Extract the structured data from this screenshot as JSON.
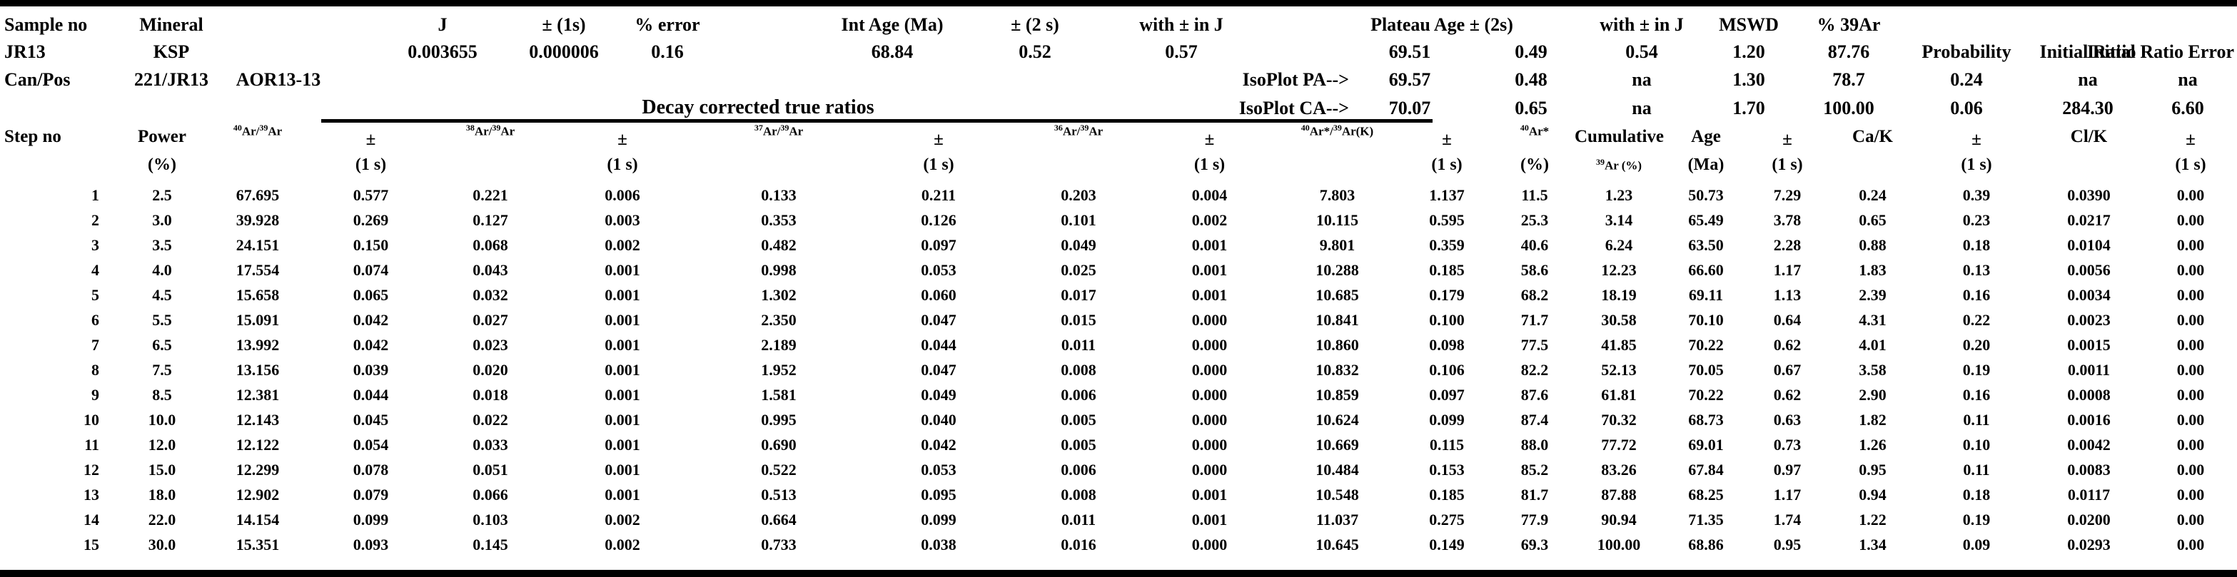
{
  "info": {
    "header_row": {
      "sample_no": "Sample no",
      "mineral": "Mineral",
      "j": "J",
      "pm_1s": "± (1s)",
      "pct_error": "% error",
      "int_age": "Int Age (Ma)",
      "pm_2s": "± (2 s)",
      "with_pm_in_j": "with ± in J",
      "plateau_age_pm_2s": "Plateau Age ± (2s)",
      "with_pm_in_j_2": "with ± in J",
      "mswd": "MSWD",
      "pct_39ar": "% 39Ar"
    },
    "sample_row": {
      "sample_no": "JR13",
      "mineral": "KSP",
      "j": "0.003655",
      "j_err": "0.000006",
      "pct_error": "0.16",
      "int_age": "68.84",
      "int_age_err": "0.52",
      "with_pm_in_j": "0.57",
      "plateau_age": "69.51",
      "plateau_age_err": "0.49",
      "with_pm_in_j_2": "0.54",
      "mswd": "1.20",
      "pct_39ar": "87.76",
      "probability_label": "Probability",
      "initial_ratio_label": "Initial Ratio",
      "initial_ratio_error_label": "Initial Ratio Error"
    },
    "canpos_row": {
      "label": "Can/Pos",
      "can_pos": "221/JR13",
      "irradiation": "AOR13-13",
      "isoplot_pa_label": "IsoPlot PA--&gt;",
      "age": "69.57",
      "err": "0.48",
      "with_pm_in_j": "na",
      "mswd": "1.30",
      "pct_39ar": "78.7",
      "probability": "0.24",
      "initial_ratio": "na",
      "initial_ratio_error": "na"
    },
    "decay_row": {
      "title": "Decay corrected true ratios",
      "isoplot_ca_label": "IsoPlot CA--&gt;",
      "age": "70.07",
      "err": "0.65",
      "with_pm_in_j": "na",
      "mswd": "1.70",
      "pct_39ar": "100.00",
      "probability": "0.06",
      "initial_ratio": "284.30",
      "initial_ratio_error": "6.60"
    }
  },
  "table": {
    "headers_row1": [
      "Step no",
      "Power",
      "40Ar/39Ar",
      "±",
      "38Ar/39Ar",
      "±",
      "37Ar/39Ar",
      "±",
      "36Ar/39Ar",
      "±",
      "40Ar*/39Ar(K)",
      "±",
      "40Ar*",
      "Cumulative",
      "Age",
      "±",
      "Ca/K",
      "±",
      "Cl/K",
      "±"
    ],
    "headers_row2": [
      "",
      "(%)",
      "",
      "(1 s)",
      "",
      "(1 s)",
      "",
      "(1 s)",
      "",
      "(1 s)",
      "",
      "(1 s)",
      "(%)",
      "39Ar (%)",
      "(Ma)",
      "(1 s)",
      "",
      "(1 s)",
      "",
      "(1 s)"
    ],
    "rows": [
      [
        "1",
        "2.5",
        "67.695",
        "0.577",
        "0.221",
        "0.006",
        "0.133",
        "0.211",
        "0.203",
        "0.004",
        "7.803",
        "1.137",
        "11.5",
        "1.23",
        "50.73",
        "7.29",
        "0.24",
        "0.39",
        "0.0390",
        "0.00"
      ],
      [
        "2",
        "3.0",
        "39.928",
        "0.269",
        "0.127",
        "0.003",
        "0.353",
        "0.126",
        "0.101",
        "0.002",
        "10.115",
        "0.595",
        "25.3",
        "3.14",
        "65.49",
        "3.78",
        "0.65",
        "0.23",
        "0.0217",
        "0.00"
      ],
      [
        "3",
        "3.5",
        "24.151",
        "0.150",
        "0.068",
        "0.002",
        "0.482",
        "0.097",
        "0.049",
        "0.001",
        "9.801",
        "0.359",
        "40.6",
        "6.24",
        "63.50",
        "2.28",
        "0.88",
        "0.18",
        "0.0104",
        "0.00"
      ],
      [
        "4",
        "4.0",
        "17.554",
        "0.074",
        "0.043",
        "0.001",
        "0.998",
        "0.053",
        "0.025",
        "0.001",
        "10.288",
        "0.185",
        "58.6",
        "12.23",
        "66.60",
        "1.17",
        "1.83",
        "0.13",
        "0.0056",
        "0.00"
      ],
      [
        "5",
        "4.5",
        "15.658",
        "0.065",
        "0.032",
        "0.001",
        "1.302",
        "0.060",
        "0.017",
        "0.001",
        "10.685",
        "0.179",
        "68.2",
        "18.19",
        "69.11",
        "1.13",
        "2.39",
        "0.16",
        "0.0034",
        "0.00"
      ],
      [
        "6",
        "5.5",
        "15.091",
        "0.042",
        "0.027",
        "0.001",
        "2.350",
        "0.047",
        "0.015",
        "0.000",
        "10.841",
        "0.100",
        "71.7",
        "30.58",
        "70.10",
        "0.64",
        "4.31",
        "0.22",
        "0.0023",
        "0.00"
      ],
      [
        "7",
        "6.5",
        "13.992",
        "0.042",
        "0.023",
        "0.001",
        "2.189",
        "0.044",
        "0.011",
        "0.000",
        "10.860",
        "0.098",
        "77.5",
        "41.85",
        "70.22",
        "0.62",
        "4.01",
        "0.20",
        "0.0015",
        "0.00"
      ],
      [
        "8",
        "7.5",
        "13.156",
        "0.039",
        "0.020",
        "0.001",
        "1.952",
        "0.047",
        "0.008",
        "0.000",
        "10.832",
        "0.106",
        "82.2",
        "52.13",
        "70.05",
        "0.67",
        "3.58",
        "0.19",
        "0.0011",
        "0.00"
      ],
      [
        "9",
        "8.5",
        "12.381",
        "0.044",
        "0.018",
        "0.001",
        "1.581",
        "0.049",
        "0.006",
        "0.000",
        "10.859",
        "0.097",
        "87.6",
        "61.81",
        "70.22",
        "0.62",
        "2.90",
        "0.16",
        "0.0008",
        "0.00"
      ],
      [
        "10",
        "10.0",
        "12.143",
        "0.045",
        "0.022",
        "0.001",
        "0.995",
        "0.040",
        "0.005",
        "0.000",
        "10.624",
        "0.099",
        "87.4",
        "70.32",
        "68.73",
        "0.63",
        "1.82",
        "0.11",
        "0.0016",
        "0.00"
      ],
      [
        "11",
        "12.0",
        "12.122",
        "0.054",
        "0.033",
        "0.001",
        "0.690",
        "0.042",
        "0.005",
        "0.000",
        "10.669",
        "0.115",
        "88.0",
        "77.72",
        "69.01",
        "0.73",
        "1.26",
        "0.10",
        "0.0042",
        "0.00"
      ],
      [
        "12",
        "15.0",
        "12.299",
        "0.078",
        "0.051",
        "0.001",
        "0.522",
        "0.053",
        "0.006",
        "0.000",
        "10.484",
        "0.153",
        "85.2",
        "83.26",
        "67.84",
        "0.97",
        "0.95",
        "0.11",
        "0.0083",
        "0.00"
      ],
      [
        "13",
        "18.0",
        "12.902",
        "0.079",
        "0.066",
        "0.001",
        "0.513",
        "0.095",
        "0.008",
        "0.001",
        "10.548",
        "0.185",
        "81.7",
        "87.88",
        "68.25",
        "1.17",
        "0.94",
        "0.18",
        "0.0117",
        "0.00"
      ],
      [
        "14",
        "22.0",
        "14.154",
        "0.099",
        "0.103",
        "0.002",
        "0.664",
        "0.099",
        "0.011",
        "0.001",
        "11.037",
        "0.275",
        "77.9",
        "90.94",
        "71.35",
        "1.74",
        "1.22",
        "0.19",
        "0.0200",
        "0.00"
      ],
      [
        "15",
        "30.0",
        "15.351",
        "0.093",
        "0.145",
        "0.002",
        "0.733",
        "0.038",
        "0.016",
        "0.000",
        "10.645",
        "0.149",
        "69.3",
        "100.00",
        "68.86",
        "0.95",
        "1.34",
        "0.09",
        "0.0293",
        "0.00"
      ]
    ]
  }
}
